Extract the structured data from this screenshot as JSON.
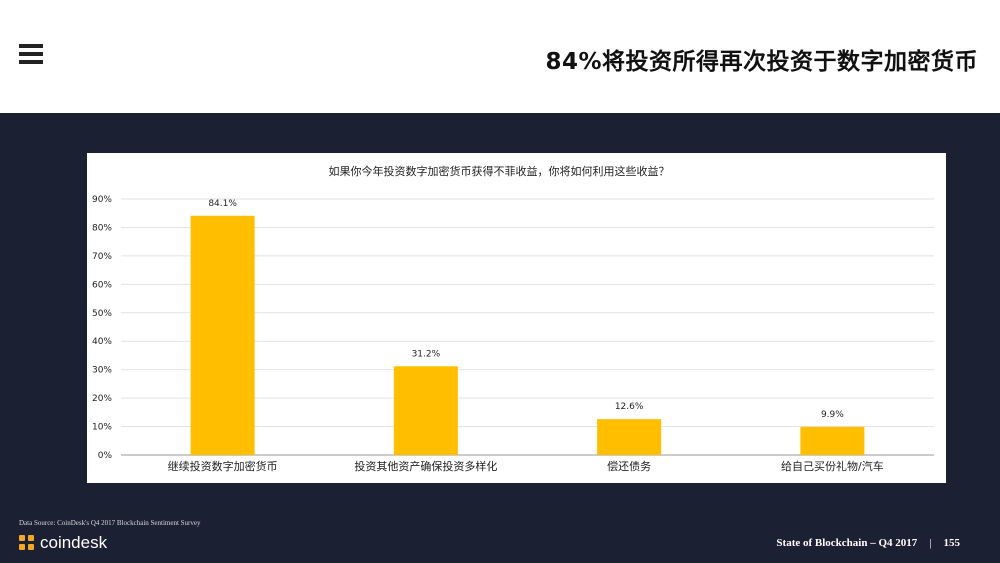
{
  "header": {
    "title": "84%将投资所得再次投资于数字加密货币"
  },
  "chart_data": {
    "type": "bar",
    "title": "如果你今年投资数字加密货币获得不菲收益，你将如何利用这些收益？",
    "categories": [
      "继续投资数字加密货币",
      "投资其他资产确保投资多样化",
      "偿还债务",
      "给自己买份礼物/汽车"
    ],
    "values": [
      84.1,
      31.2,
      12.6,
      9.9
    ],
    "value_labels": [
      "84.1%",
      "31.2%",
      "12.6%",
      "9.9%"
    ],
    "ylim": [
      0,
      90
    ],
    "yticks": [
      "0%",
      "10%",
      "20%",
      "30%",
      "40%",
      "50%",
      "60%",
      "70%",
      "80%",
      "90%"
    ],
    "grid": true,
    "bar_color": "#ffbf00"
  },
  "footer": {
    "source": "Data Source: CoinDesk's Q4 2017 Blockchain Sentiment Survey",
    "logo_text": "coindesk",
    "report": "State of Blockchain – Q4 2017",
    "separator": "|",
    "page_number": "155"
  },
  "colors": {
    "background": "#1c2033",
    "accent": "#f5a623"
  }
}
